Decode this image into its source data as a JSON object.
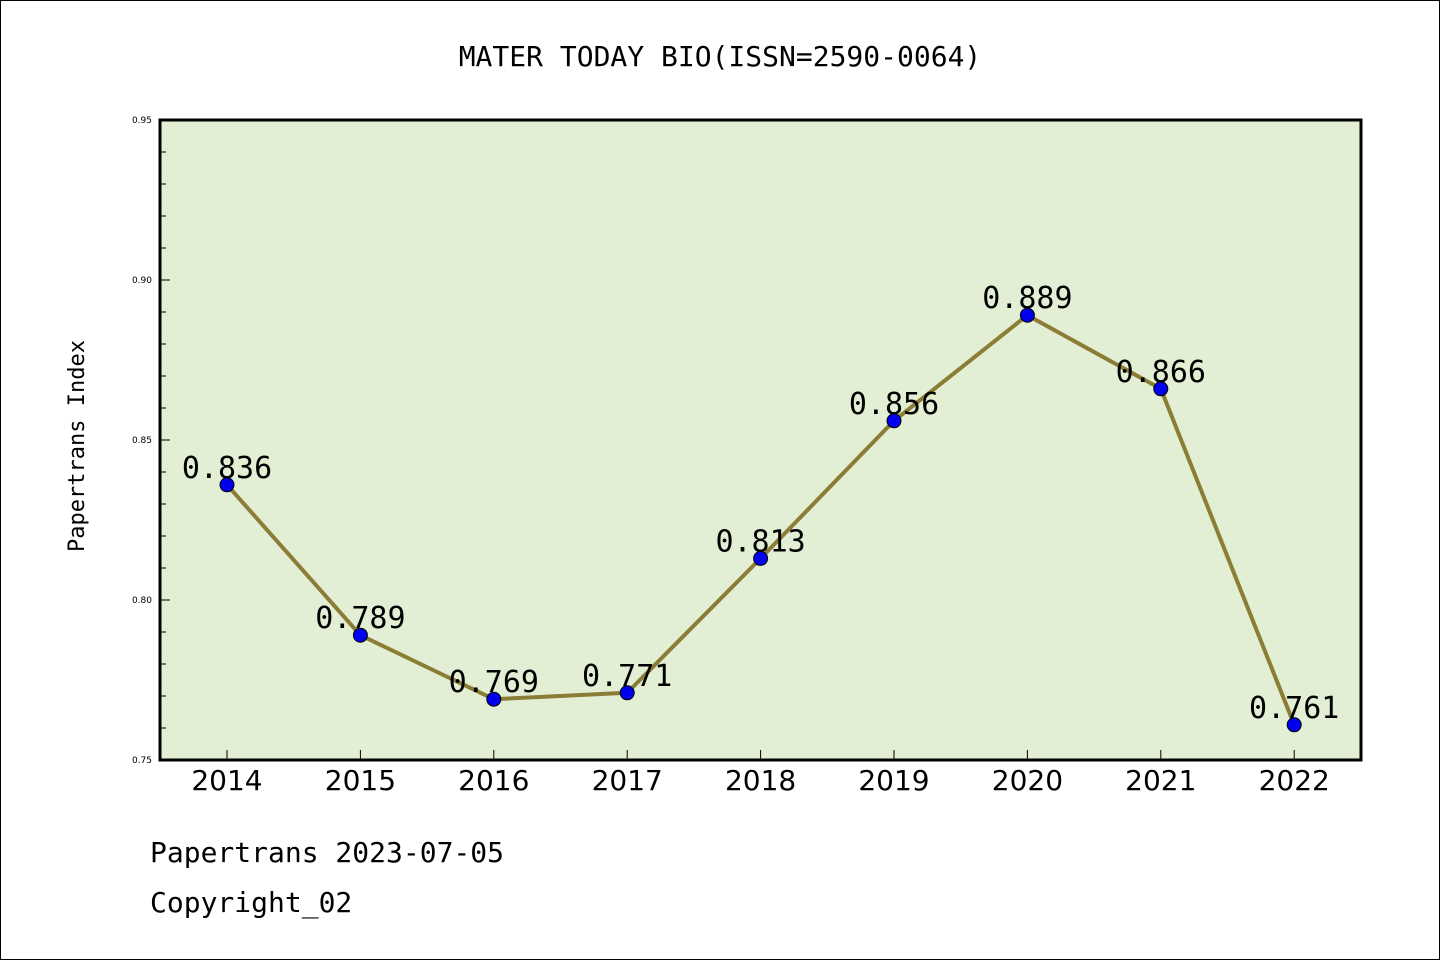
{
  "chart_data": {
    "type": "line",
    "title": "MATER TODAY BIO(ISSN=2590-0064)",
    "ylabel": "Papertrans Index",
    "xlabel": "",
    "categories": [
      "2014",
      "2015",
      "2016",
      "2017",
      "2018",
      "2019",
      "2020",
      "2021",
      "2022"
    ],
    "values": [
      0.836,
      0.789,
      0.769,
      0.771,
      0.813,
      0.856,
      0.889,
      0.866,
      0.761
    ],
    "value_labels": [
      "0.836",
      "0.789",
      "0.769",
      "0.771",
      "0.813",
      "0.856",
      "0.889",
      "0.866",
      "0.761"
    ],
    "ylim": [
      0.75,
      0.95
    ],
    "yticks": [
      "0.75",
      "0.80",
      "0.85",
      "0.90",
      "0.95"
    ],
    "grid": false,
    "colors": {
      "plot_background": "#e2efd4",
      "line": "#8b7d35",
      "marker": "#0000ee"
    }
  },
  "footer": {
    "line1": "Papertrans 2023-07-05",
    "line2": "Copyright_02"
  }
}
